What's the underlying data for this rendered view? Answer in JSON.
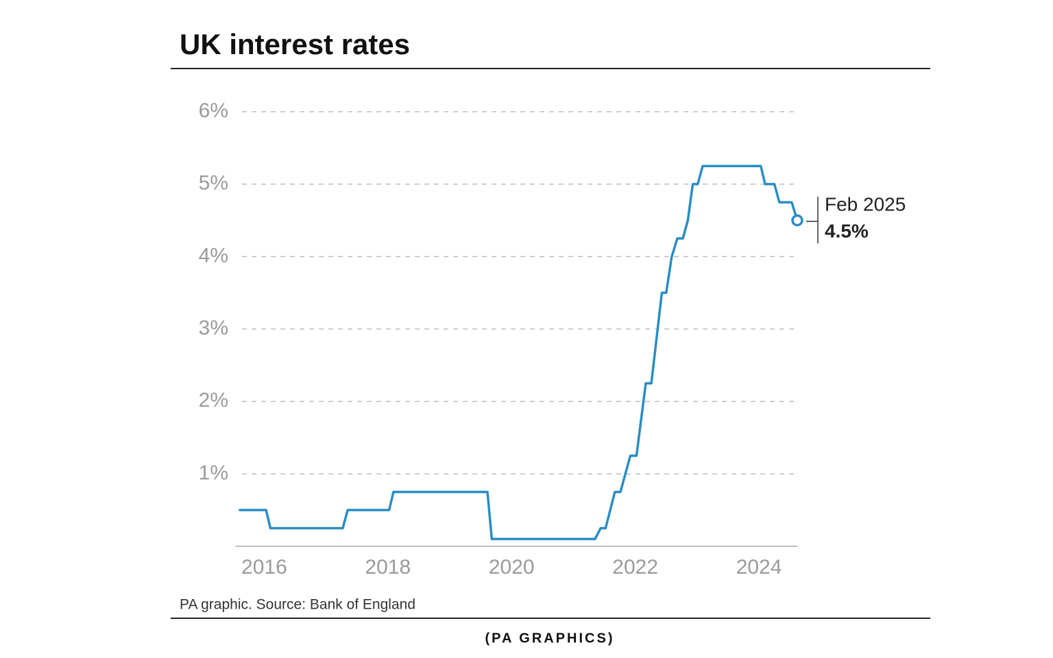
{
  "chart_data": {
    "type": "line",
    "title": "UK interest rates",
    "source": "PA graphic. Source: Bank of England",
    "credit": "(PA GRAPHICS)",
    "annotation": {
      "date": "Feb 2025",
      "value": "4.5%"
    },
    "xlim": [
      2015.53,
      2024.62
    ],
    "xticks": [
      2016,
      2018,
      2020,
      2022,
      2024
    ],
    "ylim": [
      0,
      6
    ],
    "yticks": [
      {
        "value": 1,
        "label": "1%"
      },
      {
        "value": 2,
        "label": "2%"
      },
      {
        "value": 3,
        "label": "3%"
      },
      {
        "value": 4,
        "label": "4%"
      },
      {
        "value": 5,
        "label": "5%"
      },
      {
        "value": 6,
        "label": "6%"
      }
    ],
    "grid": true,
    "series": [
      {
        "color": "#2b8cc4",
        "x": [
          2015.59,
          2016.03,
          2016.1,
          2017.27,
          2017.35,
          2018.02,
          2018.09,
          2019.61,
          2019.68,
          2021.35,
          2021.44,
          2021.52,
          2021.67,
          2021.76,
          2021.92,
          2022.02,
          2022.17,
          2022.26,
          2022.43,
          2022.5,
          2022.59,
          2022.68,
          2022.77,
          2022.85,
          2022.93,
          2023.01,
          2023.09,
          2024.03,
          2024.1,
          2024.25,
          2024.33,
          2024.53,
          2024.62
        ],
        "values": [
          0.5,
          0.5,
          0.25,
          0.25,
          0.5,
          0.5,
          0.75,
          0.75,
          0.1,
          0.1,
          0.25,
          0.25,
          0.75,
          0.75,
          1.25,
          1.25,
          2.25,
          2.25,
          3.5,
          3.5,
          4,
          4.25,
          4.25,
          4.5,
          5,
          5,
          5.25,
          5.25,
          5,
          5,
          4.75,
          4.75,
          4.5
        ]
      }
    ]
  }
}
